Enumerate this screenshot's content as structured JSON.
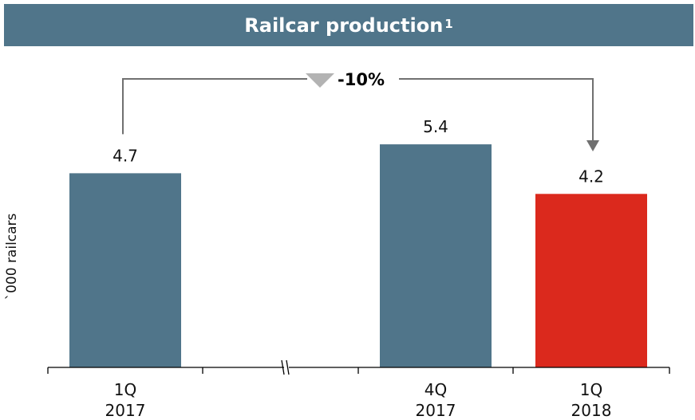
{
  "chart_data": {
    "type": "bar",
    "title": "Railcar production",
    "title_superscript": "1",
    "ylabel": "`000  railcars",
    "categories": [
      {
        "line1": "1Q",
        "line2": "2017"
      },
      {
        "line1": "4Q",
        "line2": "2017"
      },
      {
        "line1": "1Q",
        "line2": "2018"
      }
    ],
    "values": [
      4.7,
      5.4,
      4.2
    ],
    "value_labels": [
      "4.7",
      "5.4",
      "4.2"
    ],
    "bar_colors": [
      "#50758a",
      "#50758a",
      "#db291d"
    ],
    "ylim": [
      0,
      6.0
    ],
    "annotation": {
      "text": "-10%",
      "from_index": 0,
      "to_index": 2,
      "direction": "down"
    },
    "axis_break": true,
    "grid": false,
    "legend": "none"
  }
}
